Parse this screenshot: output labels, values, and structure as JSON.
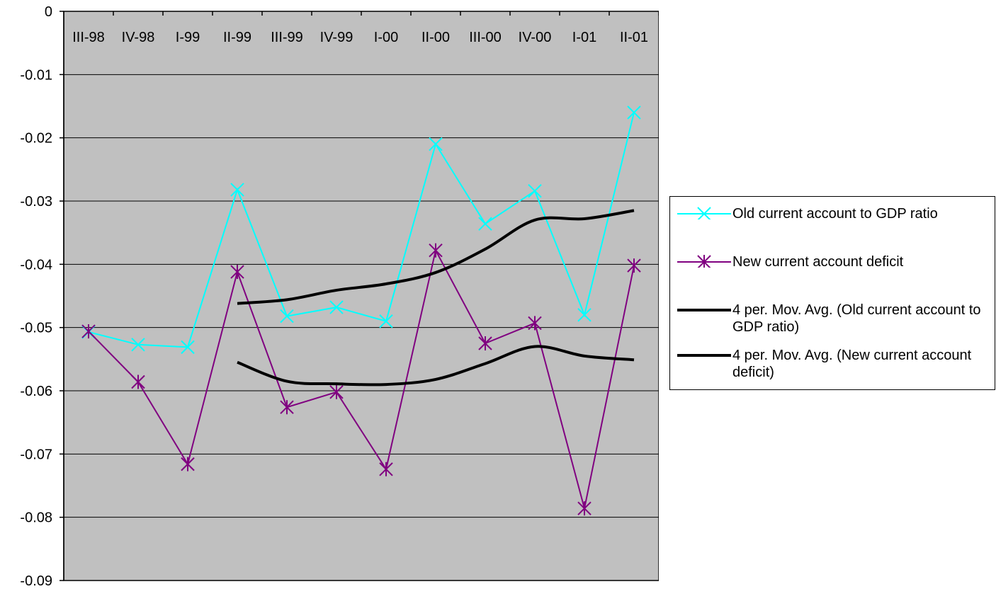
{
  "chart_data": {
    "type": "line",
    "title": "",
    "xlabel": "",
    "ylabel": "",
    "ylim": [
      -0.09,
      0
    ],
    "ytick_step": 0.01,
    "y_ticks": [
      "0",
      "-0.01",
      "-0.02",
      "-0.03",
      "-0.04",
      "-0.05",
      "-0.06",
      "-0.07",
      "-0.08",
      "-0.09"
    ],
    "categories": [
      "III-98",
      "IV-98",
      "I-99",
      "II-99",
      "III-99",
      "IV-99",
      "I-00",
      "II-00",
      "III-00",
      "IV-00",
      "I-01",
      "II-01"
    ],
    "grid": "horizontal",
    "plot_background": "#C0C0C0",
    "legend_position": "right",
    "series": [
      {
        "name": "Old current account to GDP ratio",
        "color": "#00FFFF",
        "marker": "x",
        "line_width": 2,
        "values": [
          -0.0507,
          -0.0527,
          -0.0531,
          -0.0282,
          -0.0482,
          -0.0468,
          -0.049,
          -0.021,
          -0.0336,
          -0.0284,
          -0.048,
          -0.016
        ]
      },
      {
        "name": "New current account deficit",
        "color": "#800080",
        "marker": "star",
        "line_width": 2,
        "values": [
          -0.0506,
          -0.0586,
          -0.0716,
          -0.0412,
          -0.0626,
          -0.0602,
          -0.0724,
          -0.0378,
          -0.0525,
          -0.0493,
          -0.0786,
          -0.0402
        ]
      },
      {
        "name": "4 per. Mov. Avg. (Old current account to GDP ratio)",
        "color": "#000000",
        "marker": "none",
        "line_width": 4,
        "values": [
          null,
          null,
          null,
          -0.0462,
          -0.0456,
          -0.0441,
          -0.0431,
          -0.0413,
          -0.0376,
          -0.033,
          -0.0328,
          -0.0315
        ]
      },
      {
        "name": "4 per. Mov. Avg. (New current account deficit)",
        "color": "#000000",
        "marker": "none",
        "line_width": 4,
        "values": [
          null,
          null,
          null,
          -0.0555,
          -0.0585,
          -0.0589,
          -0.059,
          -0.0582,
          -0.0557,
          -0.053,
          -0.0545,
          -0.0551
        ]
      }
    ]
  }
}
